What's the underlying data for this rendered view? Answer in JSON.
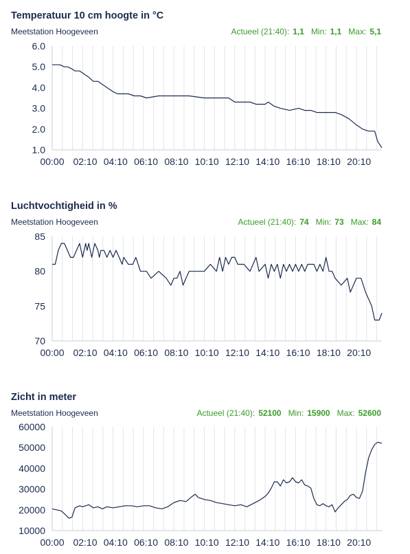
{
  "x_tick_labels": [
    "00:00",
    "02:10",
    "04:10",
    "06:10",
    "08:10",
    "10:10",
    "12:10",
    "14:10",
    "16:10",
    "18:10",
    "20:10"
  ],
  "line_color": "#1b2a4e",
  "stats_color": "#3a9b2a",
  "chart_data": [
    {
      "type": "line",
      "title": "Temperatuur 10 cm hoogte in °C",
      "station": "Meetstation Hoogeveen",
      "stats": {
        "actueel_label": "Actueel (21:40):",
        "actueel": "1,1",
        "min_label": "Min:",
        "min": "1,1",
        "max_label": "Max:",
        "max": "5,1"
      },
      "ylim": [
        1.0,
        6.0
      ],
      "y_ticks": [
        "6.0",
        "5.0",
        "4.0",
        "3.0",
        "2.0",
        "1.0"
      ],
      "x_hours": [
        0,
        0.5,
        0.8,
        1.0,
        1.3,
        1.5,
        1.8,
        2.0,
        2.2,
        2.4,
        2.7,
        2.9,
        3.0,
        3.2,
        3.4,
        3.6,
        3.8,
        4.0,
        4.3,
        5.0,
        5.4,
        5.8,
        6.2,
        7.0,
        8.0,
        9.0,
        10.0,
        11.0,
        11.6,
        12.0,
        13.0,
        13.4,
        14.0,
        14.2,
        14.6,
        15.0,
        15.6,
        16.2,
        16.6,
        17.0,
        17.4,
        18.0,
        18.6,
        19.0,
        19.5,
        20.0,
        20.4,
        20.8,
        21.2,
        21.4,
        21.67
      ],
      "y": [
        5.1,
        5.1,
        5.0,
        5.0,
        4.9,
        4.8,
        4.8,
        4.7,
        4.6,
        4.5,
        4.3,
        4.3,
        4.3,
        4.2,
        4.1,
        4.0,
        3.9,
        3.8,
        3.7,
        3.7,
        3.6,
        3.6,
        3.5,
        3.6,
        3.6,
        3.6,
        3.5,
        3.5,
        3.5,
        3.3,
        3.3,
        3.2,
        3.2,
        3.3,
        3.1,
        3.0,
        2.9,
        3.0,
        2.9,
        2.9,
        2.8,
        2.8,
        2.8,
        2.7,
        2.5,
        2.2,
        2.0,
        1.9,
        1.9,
        1.4,
        1.1
      ]
    },
    {
      "type": "line",
      "title": "Luchtvochtigheid in %",
      "station": "Meetstation Hoogeveen",
      "stats": {
        "actueel_label": "Actueel (21:40):",
        "actueel": "74",
        "min_label": "Min:",
        "min": "73",
        "max_label": "Max:",
        "max": "84"
      },
      "ylim": [
        70,
        85
      ],
      "y_ticks": [
        "85",
        "80",
        "75",
        "70"
      ],
      "x_hours": [
        0,
        0.2,
        0.4,
        0.6,
        0.8,
        1.0,
        1.2,
        1.4,
        1.6,
        1.8,
        2.0,
        2.1,
        2.2,
        2.3,
        2.4,
        2.5,
        2.6,
        2.7,
        2.8,
        3.0,
        3.1,
        3.2,
        3.4,
        3.6,
        3.8,
        4.0,
        4.2,
        4.4,
        4.6,
        4.7,
        5.0,
        5.3,
        5.5,
        5.8,
        6.2,
        6.5,
        7.0,
        7.5,
        7.8,
        8.0,
        8.2,
        8.4,
        8.6,
        8.8,
        9.0,
        9.2,
        9.4,
        9.6,
        10.0,
        10.4,
        10.8,
        11.0,
        11.2,
        11.4,
        11.6,
        11.8,
        12.0,
        12.2,
        12.6,
        13.0,
        13.4,
        13.6,
        14.0,
        14.2,
        14.4,
        14.6,
        14.8,
        15.0,
        15.2,
        15.4,
        15.6,
        15.8,
        16.0,
        16.2,
        16.4,
        16.6,
        16.8,
        17.0,
        17.2,
        17.4,
        17.6,
        17.8,
        18.0,
        18.2,
        18.4,
        18.6,
        19.0,
        19.4,
        19.6,
        20.0,
        20.3,
        20.6,
        21.0,
        21.2,
        21.5,
        21.67
      ],
      "y": [
        81,
        81,
        83,
        84,
        84,
        83,
        82,
        82,
        83,
        84,
        82,
        83,
        84,
        83,
        84,
        83,
        82,
        83,
        84,
        83,
        82,
        83,
        83,
        82,
        83,
        82,
        83,
        82,
        81,
        82,
        81,
        81,
        82,
        80,
        80,
        79,
        80,
        79,
        78,
        79,
        79,
        80,
        78,
        79,
        80,
        80,
        80,
        80,
        80,
        81,
        80,
        82,
        80,
        82,
        81,
        82,
        82,
        81,
        81,
        80,
        82,
        80,
        81,
        79,
        81,
        80,
        81,
        79,
        81,
        80,
        81,
        80,
        81,
        80,
        81,
        80,
        81,
        81,
        81,
        80,
        81,
        80,
        82,
        80,
        80,
        79,
        78,
        79,
        77,
        79,
        79,
        77,
        75,
        73,
        73,
        74
      ]
    },
    {
      "type": "line",
      "title": "Zicht in meter",
      "station": "Meetstation Hoogeveen",
      "stats": {
        "actueel_label": "Actueel (21:40):",
        "actueel": "52100",
        "min_label": "Min:",
        "min": "15900",
        "max_label": "Max:",
        "max": "52600"
      },
      "ylim": [
        10000,
        60000
      ],
      "y_ticks": [
        "60000",
        "50000",
        "40000",
        "30000",
        "20000",
        "10000"
      ],
      "x_hours": [
        0,
        0.3,
        0.6,
        0.9,
        1.1,
        1.3,
        1.5,
        1.8,
        2.0,
        2.2,
        2.4,
        2.7,
        3.0,
        3.3,
        3.6,
        4.0,
        4.4,
        4.8,
        5.2,
        5.6,
        6.0,
        6.4,
        6.8,
        7.2,
        7.6,
        8.0,
        8.4,
        8.8,
        9.2,
        9.4,
        9.6,
        10.0,
        10.4,
        10.8,
        11.2,
        11.6,
        12.0,
        12.4,
        12.8,
        13.2,
        13.6,
        14.0,
        14.2,
        14.4,
        14.6,
        14.8,
        15.0,
        15.2,
        15.4,
        15.6,
        15.8,
        16.0,
        16.2,
        16.4,
        16.6,
        16.8,
        17.0,
        17.2,
        17.4,
        17.6,
        17.8,
        18.0,
        18.2,
        18.4,
        18.6,
        18.8,
        19.0,
        19.2,
        19.4,
        19.6,
        19.8,
        20.0,
        20.2,
        20.4,
        20.6,
        20.8,
        21.0,
        21.2,
        21.4,
        21.6,
        21.67
      ],
      "y": [
        20500,
        20000,
        19500,
        17500,
        16000,
        16500,
        21000,
        22000,
        21500,
        22000,
        22500,
        21000,
        21500,
        20500,
        21500,
        21000,
        21500,
        22000,
        22000,
        21500,
        22000,
        22000,
        21000,
        20500,
        21500,
        23500,
        24500,
        24000,
        26500,
        27500,
        26000,
        25000,
        24500,
        23500,
        23000,
        22500,
        22000,
        22500,
        21500,
        23000,
        24500,
        26500,
        28000,
        30500,
        33500,
        33500,
        31500,
        34500,
        33000,
        33500,
        35500,
        33500,
        33000,
        34500,
        32000,
        31500,
        30500,
        25500,
        22500,
        22000,
        23000,
        22000,
        21500,
        22500,
        19000,
        21000,
        22500,
        24000,
        25000,
        27000,
        27500,
        26000,
        25500,
        29000,
        38000,
        45000,
        49000,
        51500,
        52600,
        52200,
        52100
      ]
    }
  ]
}
